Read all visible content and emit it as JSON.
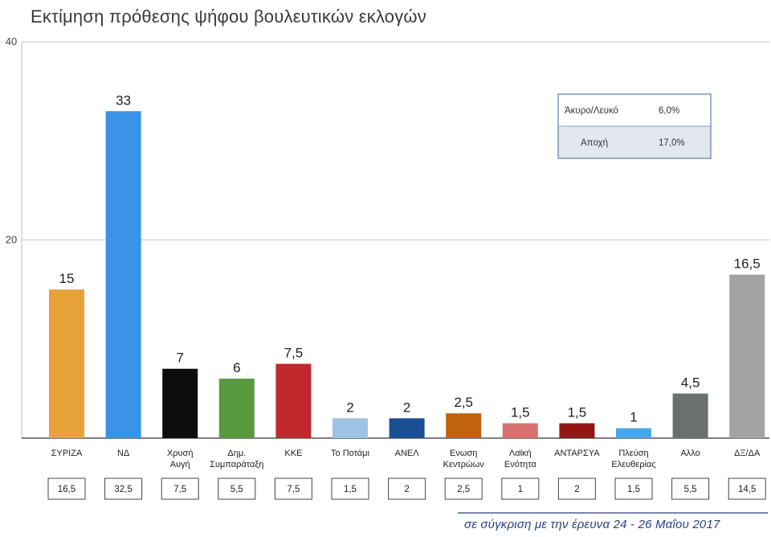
{
  "title": "Εκτίμηση πρόθεσης ψήφου βουλευτικών εκλογών",
  "footer_note": "σε σύγκριση με την έρευνα 24 - 26 Μαΐου 2017",
  "chart_data": {
    "type": "bar",
    "title": "Εκτίμηση πρόθεσης ψήφου βουλευτικών εκλογών",
    "categories": [
      [
        "ΣΥΡΙΖΑ"
      ],
      [
        "ΝΔ"
      ],
      [
        "Χρυσή",
        "Αυγή"
      ],
      [
        "Δημ.",
        "Συμπαράταξη"
      ],
      [
        "ΚΚΕ"
      ],
      [
        "Το Ποτάμι"
      ],
      [
        "ΑΝΕΛ"
      ],
      [
        "Ενωση",
        "Κεντρώων"
      ],
      [
        "Λαϊκή",
        "Ενότητα"
      ],
      [
        "ΑΝΤΑΡΣΥΑ"
      ],
      [
        "Πλεύση",
        "Ελευθερίας"
      ],
      [
        "Αλλο"
      ],
      [
        "ΔΞ/ΔΑ"
      ]
    ],
    "values": [
      15,
      33,
      7,
      6,
      7.5,
      2,
      2,
      2.5,
      1.5,
      1.5,
      1,
      4.5,
      16.5
    ],
    "value_labels": [
      "15",
      "33",
      "7",
      "6",
      "7,5",
      "2",
      "2",
      "2,5",
      "1,5",
      "1,5",
      "1",
      "4,5",
      "16,5"
    ],
    "previous_values": [
      16.5,
      32.5,
      7.5,
      5.5,
      7.5,
      1.5,
      2,
      2.5,
      1,
      2,
      1.5,
      5.5,
      14.5
    ],
    "previous_labels": [
      "16,5",
      "32,5",
      "7,5",
      "5,5",
      "7,5",
      "1,5",
      "2",
      "2,5",
      "1",
      "2",
      "1,5",
      "5,5",
      "14,5"
    ],
    "colors": [
      "#e8a23a",
      "#3a93e6",
      "#0d0d0d",
      "#5a9a3e",
      "#c0282d",
      "#9fc2e3",
      "#1b4f93",
      "#c0620e",
      "#d87070",
      "#951414",
      "#49a6e8",
      "#6b6f6f",
      "#a3a3a3"
    ],
    "ylim": [
      0,
      40
    ],
    "yticks": [
      20,
      40
    ],
    "grid": true,
    "xlabel": "",
    "ylabel": "",
    "legend_box": {
      "rows": [
        {
          "label": "Άκυρο/Λευκό",
          "value": "6,0%"
        },
        {
          "label": "Αποχή",
          "value": "17,0%"
        }
      ],
      "placement": "top-right"
    }
  }
}
